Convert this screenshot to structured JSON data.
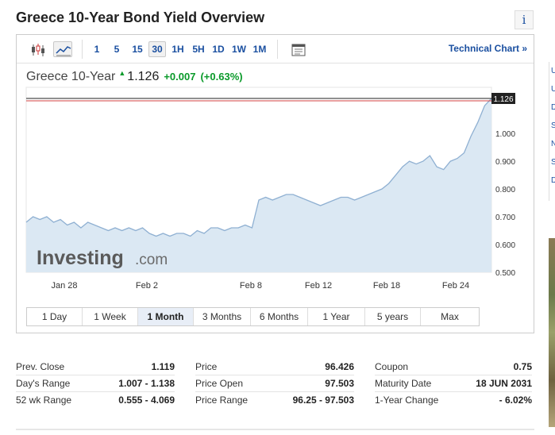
{
  "page": {
    "title": "Greece 10-Year Bond Yield Overview"
  },
  "toolbar": {
    "timeframes": [
      "1",
      "5",
      "15",
      "30",
      "1H",
      "5H",
      "1D",
      "1W",
      "1M"
    ],
    "active_timeframe": "30",
    "tech_link": "Technical Chart »"
  },
  "quote": {
    "name": "Greece 10-Year",
    "price": "1.126",
    "change": "+0.007",
    "change_pct": "(+0.63%)",
    "color_up": "#0a9a2a"
  },
  "chart_data": {
    "type": "area",
    "watermark": {
      "brand": "Investing",
      "suffix": ".com"
    },
    "x_tick_labels": [
      "Jan 28",
      "Feb 2",
      "Feb 8",
      "Feb 12",
      "Feb 18",
      "Feb 24"
    ],
    "y_tick_labels": [
      "1.000",
      "0.900",
      "0.800",
      "0.700",
      "0.600",
      "0.500"
    ],
    "ylim": [
      0.5,
      1.126
    ],
    "current_label": "1.126",
    "grid": false,
    "colors": {
      "line": "#8fb0d2",
      "fill": "#dbe8f3",
      "last_line": "#222222",
      "prev_close_line": "#d04040"
    },
    "series": [
      {
        "values": [
          0.68,
          0.7,
          0.69,
          0.7,
          0.68,
          0.69,
          0.67,
          0.68,
          0.66,
          0.68,
          0.67,
          0.66,
          0.65,
          0.66,
          0.65,
          0.66,
          0.65,
          0.66,
          0.64,
          0.63,
          0.64,
          0.63,
          0.64,
          0.64,
          0.63,
          0.65,
          0.64,
          0.66,
          0.66,
          0.65,
          0.66,
          0.66,
          0.67,
          0.66,
          0.76,
          0.77,
          0.76,
          0.77,
          0.78,
          0.78,
          0.77,
          0.76,
          0.75,
          0.74,
          0.75,
          0.76,
          0.77,
          0.77,
          0.76,
          0.77,
          0.78,
          0.79,
          0.8,
          0.82,
          0.85,
          0.88,
          0.9,
          0.89,
          0.9,
          0.92,
          0.88,
          0.87,
          0.9,
          0.91,
          0.93,
          0.99,
          1.04,
          1.1,
          1.126
        ]
      }
    ]
  },
  "ranges": {
    "items": [
      "1 Day",
      "1 Week",
      "1 Month",
      "3 Months",
      "6 Months",
      "1 Year",
      "5 years",
      "Max"
    ],
    "active": "1 Month"
  },
  "stats": {
    "col1": [
      {
        "label": "Prev. Close",
        "value": "1.119"
      },
      {
        "label": "Day's Range",
        "value": "1.007 - 1.138"
      },
      {
        "label": "52 wk Range",
        "value": "0.555 - 4.069"
      }
    ],
    "col2": [
      {
        "label": "Price",
        "value": "96.426"
      },
      {
        "label": "Price Open",
        "value": "97.503"
      },
      {
        "label": "Price Range",
        "value": "96.25 - 97.503"
      }
    ],
    "col3": [
      {
        "label": "Coupon",
        "value": "0.75"
      },
      {
        "label": "Maturity Date",
        "value": "18 JUN 2031"
      },
      {
        "label": "1-Year Change",
        "value": "- 6.02%"
      }
    ]
  },
  "sidebar_letters": [
    "U",
    "U",
    "D",
    "S",
    "N",
    "S",
    "D"
  ]
}
